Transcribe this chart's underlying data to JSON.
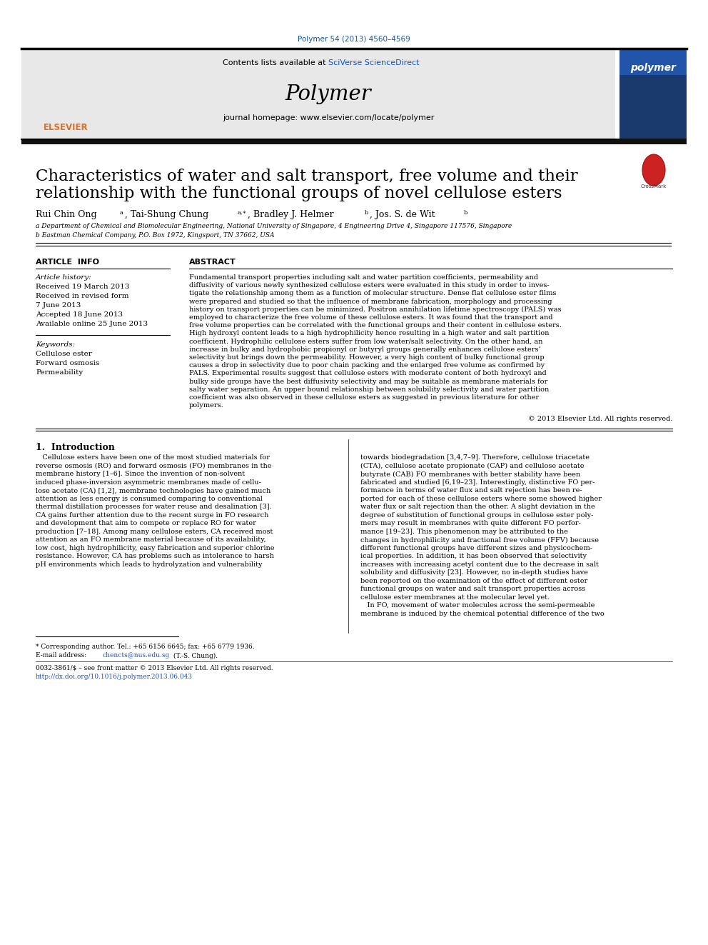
{
  "doi_text": "Polymer 54 (2013) 4560–4569",
  "journal_name": "Polymer",
  "contents_text": "Contents lists available at SciVerse ScienceDirect",
  "journal_url": "journal homepage: www.elsevier.com/locate/polymer",
  "title_line1": "Characteristics of water and salt transport, free volume and their",
  "title_line2": "relationship with the functional groups of novel cellulose esters",
  "affil_a": "a Department of Chemical and Biomolecular Engineering, National University of Singapore, 4 Engineering Drive 4, Singapore 117576, Singapore",
  "affil_b": "b Eastman Chemical Company, P.O. Box 1972, Kingsport, TN 37662, USA",
  "article_info_title": "ARTICLE  INFO",
  "article_history_label": "Article history:",
  "received": "Received 19 March 2013",
  "received_revised": "Received in revised form",
  "revised_date": "7 June 2013",
  "accepted": "Accepted 18 June 2013",
  "available": "Available online 25 June 2013",
  "keywords_label": "Keywords:",
  "keyword1": "Cellulose ester",
  "keyword2": "Forward osmosis",
  "keyword3": "Permeability",
  "abstract_title": "ABSTRACT",
  "copyright": "© 2013 Elsevier Ltd. All rights reserved.",
  "intro_title": "1.  Introduction",
  "footnote_star": "* Corresponding author. Tel.: +65 6156 6645; fax: +65 6779 1936.",
  "footnote_email1": "E-mail address: ",
  "footnote_email2": "chencts@nus.edu.sg",
  "footnote_email3": " (T.-S. Chung).",
  "footer_issn": "0032-3861/$ – see front matter © 2013 Elsevier Ltd. All rights reserved.",
  "footer_doi": "http://dx.doi.org/10.1016/j.polymer.2013.06.043",
  "doi_color": "#1155aa",
  "paper_bg": "#ffffff",
  "abstract_lines": [
    "Fundamental transport properties including salt and water partition coefficients, permeability and",
    "diffusivity of various newly synthesized cellulose esters were evaluated in this study in order to inves-",
    "tigate the relationship among them as a function of molecular structure. Dense flat cellulose ester films",
    "were prepared and studied so that the influence of membrane fabrication, morphology and processing",
    "history on transport properties can be minimized. Positron annihilation lifetime spectroscopy (PALS) was",
    "employed to characterize the free volume of these cellulose esters. It was found that the transport and",
    "free volume properties can be correlated with the functional groups and their content in cellulose esters.",
    "High hydroxyl content leads to a high hydrophilicity hence resulting in a high water and salt partition",
    "coefficient. Hydrophilic cellulose esters suffer from low water/salt selectivity. On the other hand, an",
    "increase in bulky and hydrophobic propionyl or butyryl groups generally enhances cellulose esters’",
    "selectivity but brings down the permeability. However, a very high content of bulky functional group",
    "causes a drop in selectivity due to poor chain packing and the enlarged free volume as confirmed by",
    "PALS. Experimental results suggest that cellulose esters with moderate content of both hydroxyl and",
    "bulky side groups have the best diffusivity selectivity and may be suitable as membrane materials for",
    "salty water separation. An upper bound relationship between solubility selectivity and water partition",
    "coefficient was also observed in these cellulose esters as suggested in previous literature for other",
    "polymers."
  ],
  "intro_col1_lines": [
    "   Cellulose esters have been one of the most studied materials for",
    "reverse osmosis (RO) and forward osmosis (FO) membranes in the",
    "membrane history [1–6]. Since the invention of non-solvent",
    "induced phase-inversion asymmetric membranes made of cellu-",
    "lose acetate (CA) [1,2], membrane technologies have gained much",
    "attention as less energy is consumed comparing to conventional",
    "thermal distillation processes for water reuse and desalination [3].",
    "CA gains further attention due to the recent surge in FO research",
    "and development that aim to compete or replace RO for water",
    "production [7–18]. Among many cellulose esters, CA received most",
    "attention as an FO membrane material because of its availability,",
    "low cost, high hydrophilicity, easy fabrication and superior chlorine",
    "resistance. However, CA has problems such as intolerance to harsh",
    "pH environments which leads to hydrolyzation and vulnerability"
  ],
  "intro_col2_lines": [
    "towards biodegradation [3,4,7–9]. Therefore, cellulose triacetate",
    "(CTA), cellulose acetate propionate (CAP) and cellulose acetate",
    "butyrate (CAB) FO membranes with better stability have been",
    "fabricated and studied [6,19–23]. Interestingly, distinctive FO per-",
    "formance in terms of water flux and salt rejection has been re-",
    "ported for each of these cellulose esters where some showed higher",
    "water flux or salt rejection than the other. A slight deviation in the",
    "degree of substitution of functional groups in cellulose ester poly-",
    "mers may result in membranes with quite different FO perfor-",
    "mance [19–23]. This phenomenon may be attributed to the",
    "changes in hydrophilicity and fractional free volume (FFV) because",
    "different functional groups have different sizes and physicochem-",
    "ical properties. In addition, it has been observed that selectivity",
    "increases with increasing acetyl content due to the decrease in salt",
    "solubility and diffusivity [23]. However, no in-depth studies have",
    "been reported on the examination of the effect of different ester",
    "functional groups on water and salt transport properties across",
    "cellulose ester membranes at the molecular level yet.",
    "   In FO, movement of water molecules across the semi-permeable",
    "membrane is induced by the chemical potential difference of the two"
  ]
}
